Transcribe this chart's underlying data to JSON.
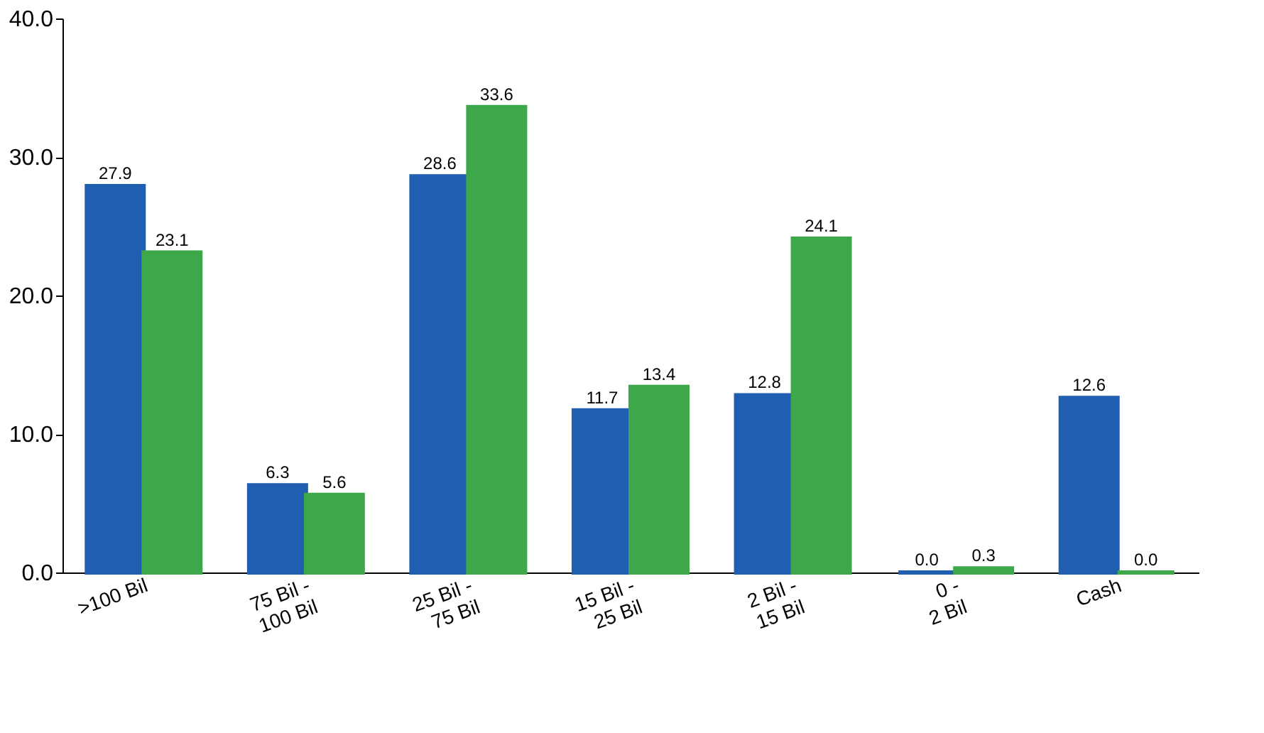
{
  "chart_data": {
    "type": "bar",
    "categories": [
      ">100 Bil",
      "75 Bil -\n100 Bil",
      "25 Bil -\n75 Bil",
      "15 Bil -\n25 Bil",
      "2 Bil -\n15 Bil",
      "0 -\n2 Bil",
      "Cash"
    ],
    "series": [
      {
        "color": "#1f5eb0",
        "values": [
          27.9,
          6.3,
          28.6,
          11.7,
          12.8,
          0.0,
          12.6
        ],
        "value_labels": [
          "27.9",
          "6.3",
          "28.6",
          "11.7",
          "12.8",
          "0.0",
          "12.6"
        ]
      },
      {
        "color": "#3da84a",
        "values": [
          23.1,
          5.6,
          33.6,
          13.4,
          24.1,
          0.3,
          0.0
        ],
        "value_labels": [
          "23.1",
          "5.6",
          "33.6",
          "13.4",
          "24.1",
          "0.3",
          "0.0"
        ]
      }
    ],
    "ylim": [
      0,
      40
    ],
    "yticks": [
      {
        "value": 0,
        "label": "0.0"
      },
      {
        "value": 10,
        "label": "10.0"
      },
      {
        "value": 20,
        "label": "20.0"
      },
      {
        "value": 30,
        "label": "30.0"
      },
      {
        "value": 40,
        "label": "40.0"
      }
    ],
    "grid": false,
    "legend": false
  }
}
